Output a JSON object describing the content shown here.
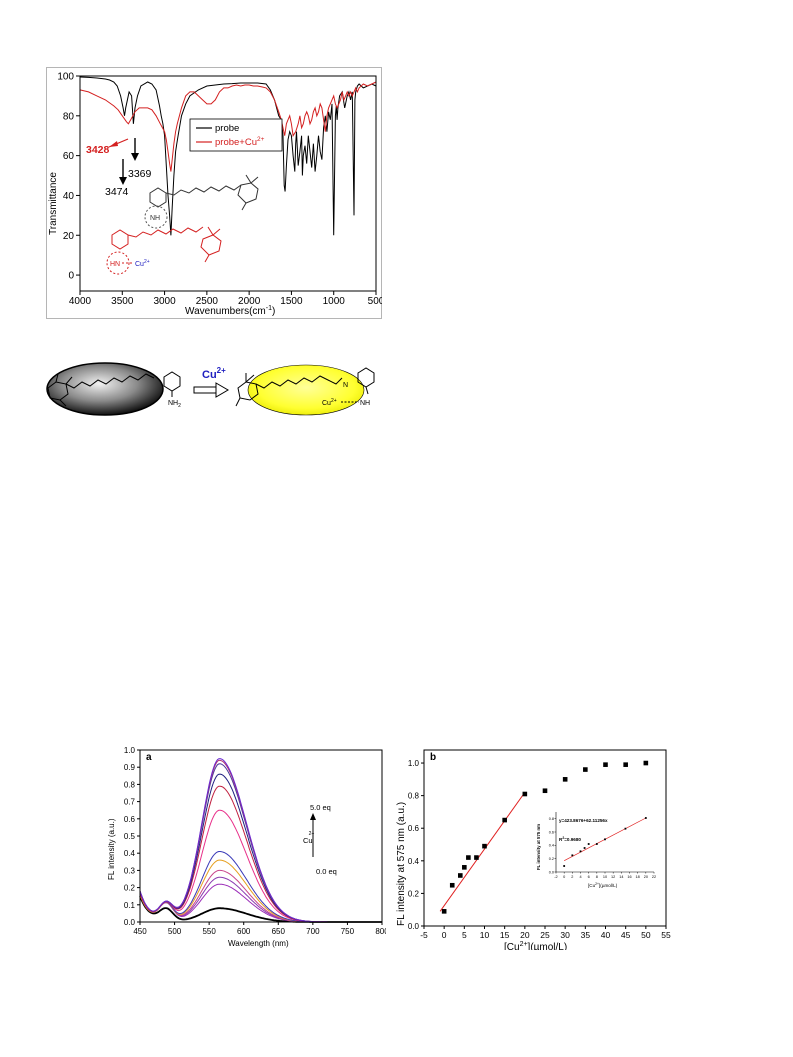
{
  "ir": {
    "frame_color": "#b5b5b5",
    "xlabel": "Wavenumbers(cm",
    "xlabel_sup": "-1",
    "xlabel_end": ")",
    "ylabel": "Transmittance",
    "x_ticks": [
      "4000",
      "3500",
      "3000",
      "2500",
      "2000",
      "1500",
      "1000",
      "500"
    ],
    "y_ticks": [
      "100",
      "80",
      "60",
      "40",
      "20",
      "0"
    ],
    "legend": {
      "probe": "probe",
      "probe_cu": "probe+Cu",
      "cu_sup": "2+"
    },
    "annotations": {
      "a3428": "3428",
      "a3474": "3474",
      "a3369": "3369"
    },
    "structure": {
      "nh2": "NH",
      "hn": "HN",
      "cu": "Cu",
      "cu_sup": "2+"
    }
  },
  "scheme": {
    "reagent": "Cu",
    "reagent_sup": "2+",
    "nh2": "NH",
    "nh2_sub": "2",
    "n_label": "N",
    "cu_label": "Cu",
    "cu_sup": "2+",
    "nh_label": "NH"
  },
  "fl": {
    "panel_label": "a",
    "xlabel": "Wavelength (nm)",
    "ylabel": "FL intensity (a.u.)",
    "x_ticks": [
      "450",
      "500",
      "550",
      "600",
      "650",
      "700",
      "750",
      "800"
    ],
    "y_ticks": [
      "0.0",
      "0.1",
      "0.2",
      "0.3",
      "0.4",
      "0.5",
      "0.6",
      "0.7",
      "0.8",
      "0.9",
      "1.0"
    ],
    "annot_top": "5.0 eq",
    "annot_bottom": "0.0 eq",
    "annot_cu": "Cu",
    "annot_cu_sup": "2+"
  },
  "b": {
    "panel_label": "b",
    "xlabel": "[Cu",
    "xlabel_sup": "2+",
    "xlabel_end": "](µmol/L)",
    "ylabel": "FL intensity at 575 nm (a.u.)",
    "x_ticks": [
      "-5",
      "0",
      "5",
      "10",
      "15",
      "20",
      "25",
      "30",
      "35",
      "40",
      "45",
      "50",
      "55"
    ],
    "y_ticks": [
      "0.0",
      "0.2",
      "0.4",
      "0.6",
      "0.8",
      "1.0"
    ],
    "inset": {
      "equation": "y=423.8676+62.11256x",
      "r2_label": "R",
      "r2_sup": "2",
      "r2_value": "=0.9680",
      "ylabel": "FL intensity at 575 nm",
      "xlabel": "[Cu",
      "xlabel_sup": "2+",
      "xlabel_end": "](µmol/L)",
      "x_ticks": [
        "-2",
        "0",
        "2",
        "4",
        "6",
        "8",
        "10",
        "12",
        "14",
        "16",
        "18",
        "20",
        "22"
      ],
      "y_ticks": [
        "0.0",
        "0.2",
        "0.4",
        "0.6",
        "0.8"
      ]
    }
  },
  "chart_data": [
    {
      "type": "line",
      "xlabel": "Wavenumbers(cm-1)",
      "ylabel": "Transmittance",
      "xlim": [
        4000,
        500
      ],
      "ylim": [
        -8,
        100
      ],
      "series": [
        {
          "name": "probe",
          "color": "#000000",
          "x": [
            4000,
            3900,
            3800,
            3700,
            3650,
            3600,
            3560,
            3520,
            3490,
            3474,
            3460,
            3420,
            3390,
            3369,
            3350,
            3320,
            3280,
            3200,
            3150,
            3100,
            3060,
            3040,
            3020,
            3000,
            2980,
            2960,
            2940,
            2925,
            2910,
            2890,
            2870,
            2855,
            2840,
            2800,
            2750,
            2700,
            2600,
            2500,
            2400,
            2300,
            2200,
            2100,
            2000,
            1900,
            1800,
            1750,
            1700,
            1650,
            1620,
            1600,
            1585,
            1575,
            1560,
            1540,
            1520,
            1500,
            1480,
            1460,
            1450,
            1440,
            1420,
            1400,
            1380,
            1370,
            1360,
            1340,
            1320,
            1300,
            1280,
            1260,
            1240,
            1220,
            1200,
            1180,
            1160,
            1140,
            1120,
            1100,
            1080,
            1060,
            1040,
            1020,
            1000,
            980,
            970,
            960,
            950,
            930,
            900,
            870,
            840,
            820,
            800,
            780,
            760,
            750,
            740,
            720,
            700,
            650,
            600,
            550,
            500
          ],
          "y": [
            99.5,
            99.3,
            99.0,
            98.5,
            98,
            97,
            95,
            90,
            84,
            80,
            84,
            92,
            90,
            76,
            84,
            90,
            95,
            97,
            96,
            93,
            85,
            80,
            76,
            70,
            55,
            40,
            30,
            20,
            34,
            50,
            62,
            66,
            70,
            80,
            86,
            90,
            93,
            95,
            95.5,
            96,
            96.2,
            96.5,
            96.5,
            96.5,
            96,
            93,
            88,
            80,
            78,
            70,
            45,
            42,
            55,
            68,
            72,
            70,
            60,
            52,
            66,
            72,
            55,
            62,
            70,
            50,
            60,
            65,
            56,
            70,
            62,
            54,
            66,
            52,
            60,
            70,
            62,
            58,
            74,
            80,
            72,
            82,
            78,
            86,
            20,
            80,
            85,
            78,
            84,
            90,
            92,
            84,
            90,
            92,
            88,
            92,
            30,
            88,
            92,
            95,
            96,
            94,
            95,
            96,
            95
          ]
        },
        {
          "name": "probe+Cu2+",
          "color": "#d42020",
          "x": [
            4000,
            3900,
            3800,
            3700,
            3600,
            3550,
            3500,
            3450,
            3428,
            3400,
            3350,
            3300,
            3250,
            3200,
            3150,
            3100,
            3050,
            3000,
            2980,
            2960,
            2940,
            2925,
            2910,
            2890,
            2870,
            2850,
            2800,
            2750,
            2700,
            2650,
            2600,
            2550,
            2500,
            2450,
            2400,
            2350,
            2300,
            2250,
            2200,
            2150,
            2100,
            2050,
            2000,
            1950,
            1900,
            1850,
            1800,
            1750,
            1700,
            1650,
            1620,
            1600,
            1580,
            1560,
            1540,
            1520,
            1500,
            1480,
            1450,
            1420,
            1400,
            1380,
            1360,
            1340,
            1320,
            1300,
            1280,
            1260,
            1240,
            1220,
            1200,
            1180,
            1160,
            1140,
            1120,
            1100,
            1080,
            1060,
            1040,
            1020,
            1000,
            980,
            960,
            940,
            920,
            900,
            880,
            860,
            840,
            820,
            800,
            780,
            760,
            740,
            720,
            700,
            650,
            600,
            550,
            500
          ],
          "y": [
            93,
            92,
            90,
            88,
            85,
            83,
            80,
            77,
            76,
            78,
            82,
            84,
            84,
            84,
            83,
            80,
            76,
            72,
            68,
            62,
            56,
            52,
            58,
            66,
            72,
            76,
            84,
            90,
            92,
            92,
            90,
            88,
            86,
            86,
            88,
            92,
            94,
            94,
            95,
            95.5,
            95,
            95.5,
            95.5,
            95,
            95,
            94.5,
            94,
            92,
            88,
            82,
            78,
            74,
            70,
            76,
            78,
            80,
            76,
            70,
            72,
            76,
            80,
            74,
            76,
            80,
            82,
            80,
            76,
            78,
            82,
            84,
            80,
            82,
            86,
            84,
            78,
            72,
            80,
            84,
            86,
            88,
            90,
            86,
            84,
            86,
            88,
            92,
            88,
            90,
            92,
            90,
            92,
            90,
            92,
            94,
            92,
            94,
            96,
            95,
            96,
            97
          ]
        }
      ]
    },
    {
      "type": "line",
      "title": "a",
      "xlabel": "Wavelength (nm)",
      "ylabel": "FL intensity (a.u.)",
      "xlim": [
        450,
        800
      ],
      "ylim": [
        0,
        1.0
      ],
      "peak_nm": 565,
      "shoulder_nm": 488,
      "series": [
        {
          "color": "#000000",
          "peak": 0.08,
          "start": 0.17,
          "shoulder": 0.07
        },
        {
          "color": "#9b2db8",
          "peak": 0.22,
          "start": 0.18,
          "shoulder": 0.1
        },
        {
          "color": "#8a3ab0",
          "peak": 0.26,
          "start": 0.18,
          "shoulder": 0.1
        },
        {
          "color": "#c8458a",
          "peak": 0.3,
          "start": 0.18,
          "shoulder": 0.1
        },
        {
          "color": "#e6a020",
          "peak": 0.36,
          "start": 0.18,
          "shoulder": 0.1
        },
        {
          "color": "#3a3ab8",
          "peak": 0.41,
          "start": 0.19,
          "shoulder": 0.1
        },
        {
          "color": "#e8308a",
          "peak": 0.65,
          "start": 0.19,
          "shoulder": 0.1
        },
        {
          "color": "#c02040",
          "peak": 0.79,
          "start": 0.19,
          "shoulder": 0.1
        },
        {
          "color": "#202080",
          "peak": 0.86,
          "start": 0.2,
          "shoulder": 0.1
        },
        {
          "color": "#4a3a9a",
          "peak": 0.92,
          "start": 0.2,
          "shoulder": 0.1
        },
        {
          "color": "#b03070",
          "peak": 0.94,
          "start": 0.2,
          "shoulder": 0.1
        },
        {
          "color": "#6a2ad0",
          "peak": 0.95,
          "start": 0.2,
          "shoulder": 0.1
        }
      ]
    },
    {
      "type": "scatter",
      "title": "b",
      "xlabel": "[Cu2+](µmol/L)",
      "ylabel": "FL intensity at 575 nm (a.u.)",
      "xlim": [
        -5,
        55
      ],
      "ylim": [
        0,
        1.08
      ],
      "x": [
        0,
        2,
        4,
        5,
        6,
        8,
        10,
        15,
        20,
        25,
        30,
        35,
        40,
        45,
        50
      ],
      "y": [
        0.09,
        0.25,
        0.31,
        0.36,
        0.42,
        0.42,
        0.49,
        0.65,
        0.81,
        0.83,
        0.9,
        0.96,
        0.99,
        0.99,
        1.0
      ],
      "fit": {
        "x": [
          -1,
          20
        ],
        "y": [
          0.09,
          0.82
        ],
        "color": "#e02020"
      },
      "inset": {
        "type": "scatter",
        "xlim": [
          -2,
          22
        ],
        "ylim": [
          0,
          0.9
        ],
        "x": [
          0,
          2,
          4,
          5,
          6,
          8,
          10,
          15,
          20
        ],
        "y": [
          0.09,
          0.25,
          0.31,
          0.36,
          0.42,
          0.42,
          0.49,
          0.65,
          0.81
        ],
        "fit": {
          "x": [
            0,
            20
          ],
          "y": [
            0.17,
            0.81
          ]
        }
      }
    }
  ]
}
